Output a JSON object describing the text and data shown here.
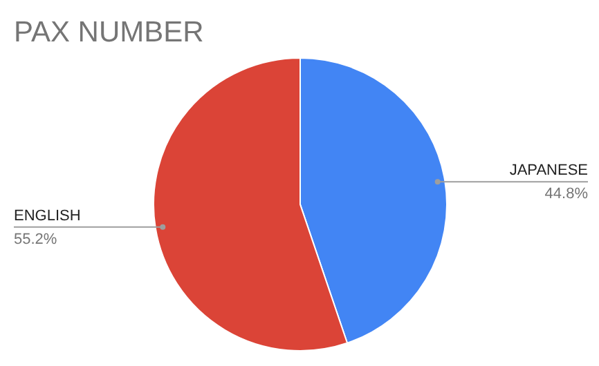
{
  "chart_data": {
    "type": "pie",
    "title": "PAX NUMBER",
    "categories": [
      "JAPANESE",
      "ENGLISH"
    ],
    "values": [
      44.8,
      55.2
    ],
    "colors": [
      "#4285f4",
      "#db4437"
    ],
    "value_labels": [
      "44.8%",
      "55.2%"
    ]
  }
}
